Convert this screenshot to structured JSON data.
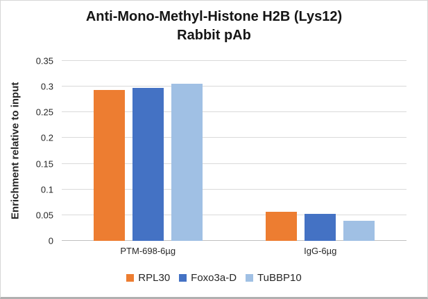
{
  "chart_data": {
    "type": "bar",
    "title_line1": "Anti-Mono-Methyl-Histone H2B (Lys12)",
    "title_line2": "Rabbit pAb",
    "ylabel": "Enrichment relative to input",
    "xlabel": "",
    "ylim": [
      0,
      0.35
    ],
    "yticks": [
      0,
      0.05,
      0.1,
      0.15,
      0.2,
      0.25,
      0.3,
      0.35
    ],
    "ytick_labels": [
      "0",
      "0.05",
      "0.1",
      "0.15",
      "0.2",
      "0.25",
      "0.3",
      "0.35"
    ],
    "grid": true,
    "legend_position": "bottom",
    "categories": [
      "PTM-698-6µg",
      "IgG-6µg"
    ],
    "series": [
      {
        "name": "RPL30",
        "color": "#ED7D31",
        "values": [
          0.293,
          0.056
        ]
      },
      {
        "name": "Foxo3a-D",
        "color": "#4472C4",
        "values": [
          0.297,
          0.052
        ]
      },
      {
        "name": "TuBBP10",
        "color": "#A0C0E4",
        "values": [
          0.305,
          0.039
        ]
      }
    ]
  },
  "colors": {
    "background": "#ffffff",
    "gridline": "#d9d9d9",
    "baseline": "#bfbfbf",
    "text": "#262626",
    "title": "#151515"
  }
}
